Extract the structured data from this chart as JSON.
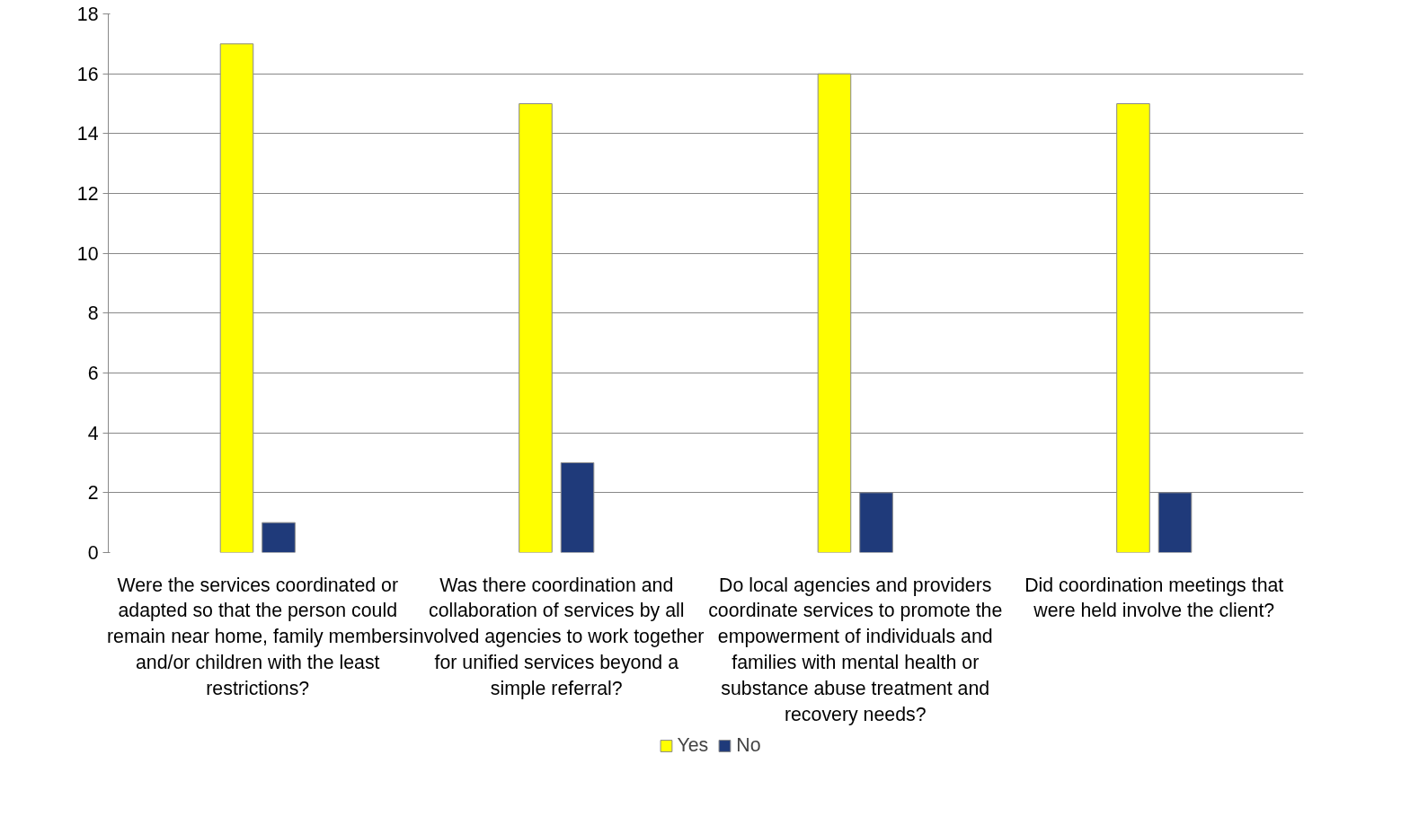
{
  "chart_data": {
    "type": "bar",
    "categories": [
      "Were the services coordinated or adapted so that the person could remain near home, family members and/or children with the least restrictions?",
      "Was there coordination and collaboration of services by all involved agencies to work together for unified services beyond a simple referral?",
      "Do local agencies and providers coordinate services to promote the empowerment of individuals and families with mental health or substance abuse treatment and recovery needs?",
      "Did coordination meetings that were held involve the client?"
    ],
    "series": [
      {
        "name": "Yes",
        "color": "#ffff00",
        "values": [
          17,
          15,
          16,
          15
        ]
      },
      {
        "name": "No",
        "color": "#1f3a7a",
        "values": [
          1,
          3,
          2,
          2
        ]
      }
    ],
    "ylim": [
      0,
      18
    ],
    "yticks": [
      0,
      2,
      4,
      6,
      8,
      10,
      12,
      14,
      16,
      18
    ],
    "grid": "y",
    "legend": "bottom"
  }
}
